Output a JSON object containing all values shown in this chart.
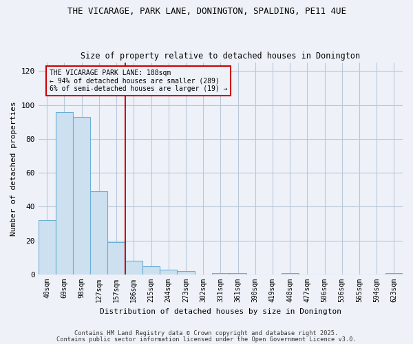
{
  "title1": "THE VICARAGE, PARK LANE, DONINGTON, SPALDING, PE11 4UE",
  "title2": "Size of property relative to detached houses in Donington",
  "xlabel": "Distribution of detached houses by size in Donington",
  "ylabel": "Number of detached properties",
  "categories": [
    "40sqm",
    "69sqm",
    "98sqm",
    "127sqm",
    "157sqm",
    "186sqm",
    "215sqm",
    "244sqm",
    "273sqm",
    "302sqm",
    "331sqm",
    "361sqm",
    "390sqm",
    "419sqm",
    "448sqm",
    "477sqm",
    "506sqm",
    "536sqm",
    "565sqm",
    "594sqm",
    "623sqm"
  ],
  "values": [
    32,
    96,
    93,
    49,
    19,
    8,
    5,
    3,
    2,
    0,
    1,
    1,
    0,
    0,
    1,
    0,
    0,
    0,
    0,
    0,
    1
  ],
  "bar_color": "#cde0f0",
  "bar_edge_color": "#6aaed6",
  "vline_index": 5,
  "vline_color": "#cc0000",
  "annotation_text": "THE VICARAGE PARK LANE: 188sqm\n← 94% of detached houses are smaller (289)\n6% of semi-detached houses are larger (19) →",
  "annotation_box_color": "#cc0000",
  "ylim": [
    0,
    125
  ],
  "yticks": [
    0,
    20,
    40,
    60,
    80,
    100,
    120
  ],
  "grid_color": "#b8c8d8",
  "bg_color": "#eef2f8",
  "footer1": "Contains HM Land Registry data © Crown copyright and database right 2025.",
  "footer2": "Contains public sector information licensed under the Open Government Licence v3.0."
}
